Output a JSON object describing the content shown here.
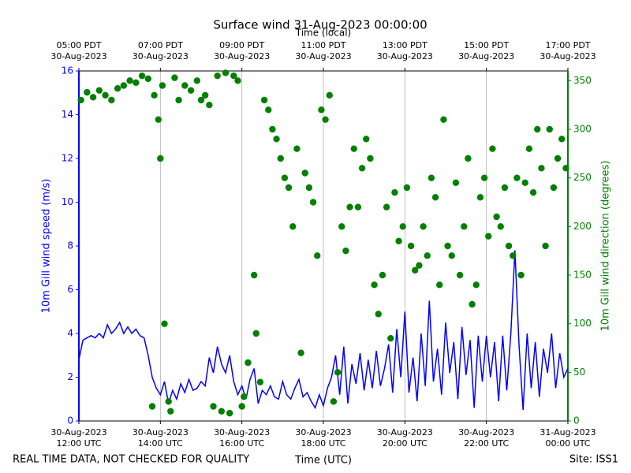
{
  "chart_data": {
    "type": "line",
    "title": "Surface wind 31-Aug-2023 00:00:00",
    "x2label": "Time (local)",
    "xlabel": "Time (UTC)",
    "ylabel": "10m Gill wind speed (m/s)",
    "y2label": "10m Gill wind direction (degrees)",
    "footer_left": "REAL TIME DATA, NOT CHECKED FOR QUALITY",
    "footer_right": "Site: ISS1",
    "xlim": [
      12,
      24
    ],
    "xticks": [
      {
        "value": 12,
        "label": "30-Aug-2023\n12:00 UTC"
      },
      {
        "value": 14,
        "label": "30-Aug-2023\n14:00 UTC"
      },
      {
        "value": 16,
        "label": "30-Aug-2023\n16:00 UTC"
      },
      {
        "value": 18,
        "label": "30-Aug-2023\n18:00 UTC"
      },
      {
        "value": 20,
        "label": "30-Aug-2023\n20:00 UTC"
      },
      {
        "value": 22,
        "label": "30-Aug-2023\n22:00 UTC"
      },
      {
        "value": 24,
        "label": "31-Aug-2023\n00:00 UTC"
      }
    ],
    "x2ticks": [
      {
        "value": 12,
        "label": "05:00 PDT\n30-Aug-2023"
      },
      {
        "value": 14,
        "label": "07:00 PDT\n30-Aug-2023"
      },
      {
        "value": 16,
        "label": "09:00 PDT\n30-Aug-2023"
      },
      {
        "value": 18,
        "label": "11:00 PDT\n30-Aug-2023"
      },
      {
        "value": 20,
        "label": "13:00 PDT\n30-Aug-2023"
      },
      {
        "value": 22,
        "label": "15:00 PDT\n30-Aug-2023"
      },
      {
        "value": 24,
        "label": "17:00 PDT\n30-Aug-2023"
      }
    ],
    "ylim": [
      0,
      16
    ],
    "yticks": [
      0,
      2,
      4,
      6,
      8,
      10,
      12,
      14,
      16
    ],
    "ycolor": "#0000ff",
    "y2lim": [
      0,
      360
    ],
    "y2ticks": [
      0,
      50,
      100,
      150,
      200,
      250,
      300,
      350
    ],
    "y2color": "#008000",
    "grid": "x",
    "series": [
      {
        "type": "line",
        "color": "#0000ff",
        "x": [
          12,
          12.1,
          12.2,
          12.3,
          12.4,
          12.5,
          12.6,
          12.7,
          12.8,
          12.9,
          13,
          13.1,
          13.2,
          13.3,
          13.4,
          13.5,
          13.6,
          13.7,
          13.8,
          13.9,
          14,
          14.1,
          14.2,
          14.3,
          14.4,
          14.5,
          14.6,
          14.7,
          14.8,
          14.9,
          15,
          15.1,
          15.2,
          15.3,
          15.4,
          15.5,
          15.6,
          15.7,
          15.8,
          15.9,
          16,
          16.1,
          16.2,
          16.3,
          16.4,
          16.5,
          16.6,
          16.7,
          16.8,
          16.9,
          17,
          17.1,
          17.2,
          17.3,
          17.4,
          17.5,
          17.6,
          17.7,
          17.8,
          17.9,
          18,
          18.1,
          18.2,
          18.3,
          18.4,
          18.5,
          18.6,
          18.7,
          18.8,
          18.9,
          19,
          19.1,
          19.2,
          19.3,
          19.4,
          19.5,
          19.6,
          19.7,
          19.8,
          19.9,
          20,
          20.1,
          20.2,
          20.3,
          20.4,
          20.5,
          20.6,
          20.7,
          20.8,
          20.9,
          21,
          21.1,
          21.2,
          21.3,
          21.4,
          21.5,
          21.6,
          21.7,
          21.8,
          21.9,
          22,
          22.1,
          22.2,
          22.3,
          22.4,
          22.5,
          22.6,
          22.7,
          22.8,
          22.9,
          23,
          23.1,
          23.2,
          23.3,
          23.4,
          23.5,
          23.6,
          23.7,
          23.8,
          23.9,
          24
        ],
        "values": [
          2.8,
          3.7,
          3.8,
          3.9,
          3.8,
          4.0,
          3.8,
          4.4,
          4.0,
          4.2,
          4.5,
          4.0,
          4.3,
          4.0,
          4.2,
          3.9,
          3.8,
          3.0,
          2.0,
          1.5,
          1.2,
          1.8,
          0.8,
          1.4,
          1.0,
          1.7,
          1.3,
          1.9,
          1.4,
          1.5,
          1.8,
          1.6,
          2.9,
          2.2,
          3.4,
          2.6,
          2.2,
          3.0,
          1.8,
          1.2,
          1.6,
          1.0,
          1.9,
          2.4,
          0.8,
          1.4,
          1.2,
          1.6,
          1.1,
          1.0,
          1.8,
          1.2,
          1.0,
          1.5,
          1.9,
          1.1,
          1.3,
          0.9,
          0.6,
          1.2,
          0.7,
          1.5,
          2.0,
          3.0,
          1.2,
          3.4,
          0.8,
          2.6,
          1.7,
          3.1,
          1.4,
          2.8,
          1.5,
          3.2,
          1.6,
          2.4,
          3.5,
          1.3,
          4.2,
          2.0,
          5.0,
          1.3,
          2.9,
          0.9,
          4.0,
          1.6,
          5.5,
          1.8,
          3.3,
          1.2,
          4.5,
          2.2,
          3.6,
          1.0,
          4.3,
          2.1,
          3.7,
          0.6,
          3.9,
          1.8,
          3.9,
          2.0,
          3.6,
          0.9,
          3.9,
          1.4,
          4.0,
          7.8,
          3.5,
          0.5,
          4.0,
          1.5,
          3.6,
          1.1,
          3.3,
          2.2,
          4.0,
          1.5,
          3.1,
          2.0,
          2.4
        ]
      },
      {
        "type": "scatter",
        "color": "#008000",
        "axis": "y2",
        "x": [
          12.05,
          12.2,
          12.35,
          12.5,
          12.65,
          12.8,
          12.95,
          13.1,
          13.25,
          13.4,
          13.55,
          13.7,
          13.8,
          13.85,
          13.95,
          14.0,
          14.05,
          14.1,
          14.2,
          14.25,
          14.35,
          14.45,
          14.6,
          14.75,
          14.9,
          15.0,
          15.1,
          15.2,
          15.3,
          15.4,
          15.5,
          15.6,
          15.7,
          15.8,
          15.9,
          16.0,
          16.05,
          16.15,
          16.3,
          16.35,
          16.45,
          16.55,
          16.65,
          16.75,
          16.85,
          16.95,
          17.05,
          17.15,
          17.25,
          17.35,
          17.45,
          17.55,
          17.65,
          17.75,
          17.85,
          17.95,
          18.05,
          18.15,
          18.25,
          18.35,
          18.45,
          18.55,
          18.65,
          18.75,
          18.85,
          18.95,
          19.05,
          19.15,
          19.25,
          19.35,
          19.45,
          19.55,
          19.65,
          19.75,
          19.85,
          19.95,
          20.05,
          20.15,
          20.25,
          20.35,
          20.45,
          20.55,
          20.65,
          20.75,
          20.85,
          20.95,
          21.05,
          21.15,
          21.25,
          21.35,
          21.45,
          21.55,
          21.65,
          21.75,
          21.85,
          21.95,
          22.05,
          22.15,
          22.25,
          22.35,
          22.45,
          22.55,
          22.65,
          22.75,
          22.85,
          22.95,
          23.05,
          23.15,
          23.25,
          23.35,
          23.45,
          23.55,
          23.65,
          23.75,
          23.85,
          23.95
        ],
        "values": [
          330,
          338,
          333,
          340,
          335,
          330,
          342,
          345,
          350,
          348,
          355,
          352,
          15,
          335,
          310,
          270,
          345,
          100,
          20,
          10,
          353,
          330,
          345,
          340,
          350,
          330,
          335,
          325,
          15,
          355,
          10,
          358,
          8,
          355,
          350,
          15,
          25,
          60,
          150,
          90,
          40,
          330,
          320,
          300,
          290,
          270,
          250,
          240,
          200,
          280,
          70,
          255,
          240,
          225,
          170,
          320,
          310,
          335,
          20,
          50,
          200,
          175,
          220,
          280,
          220,
          260,
          290,
          270,
          140,
          110,
          150,
          220,
          85,
          235,
          185,
          200,
          240,
          180,
          155,
          160,
          200,
          170,
          250,
          230,
          140,
          310,
          180,
          170,
          245,
          150,
          200,
          270,
          120,
          140,
          230,
          250,
          190,
          280,
          210,
          200,
          240,
          180,
          170,
          250,
          150,
          245,
          280,
          235,
          300,
          260,
          180,
          300,
          240,
          270,
          290,
          260
        ]
      }
    ]
  }
}
